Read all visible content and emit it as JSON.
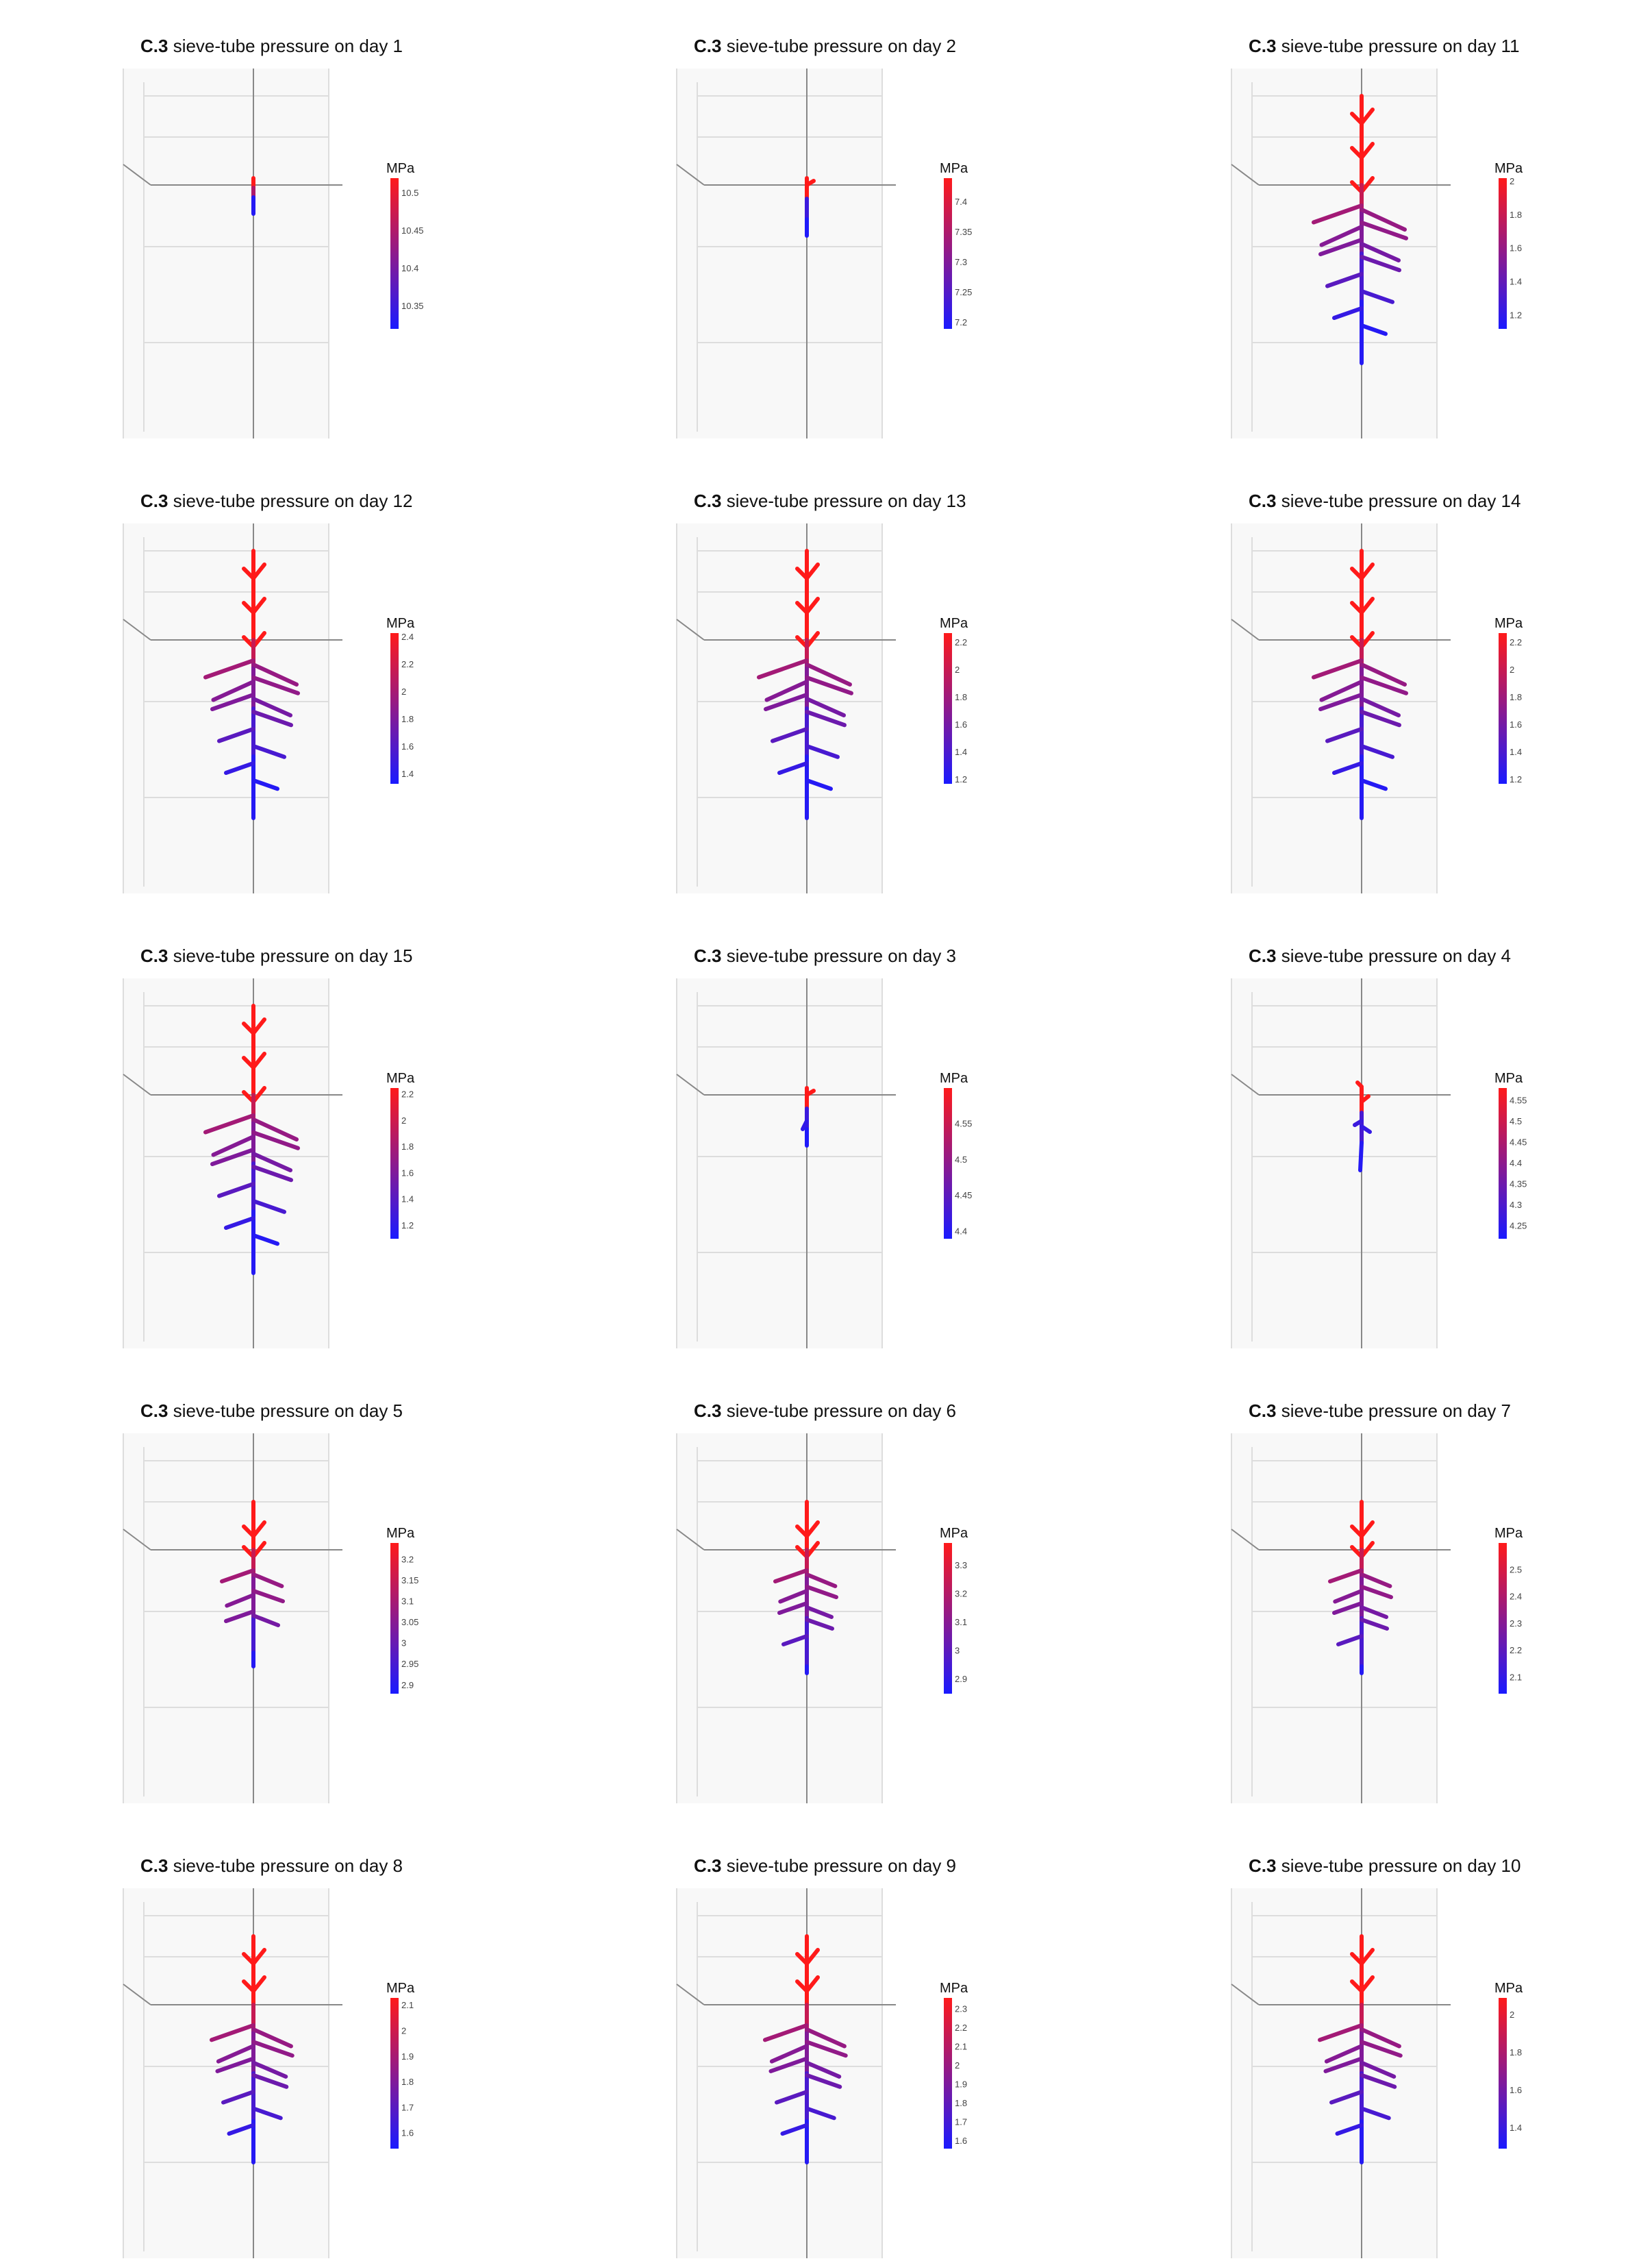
{
  "colors": {
    "low": "#1a1aff",
    "high": "#ff1a1a",
    "grid": "#dddddd",
    "pane": "#f8f8f8",
    "axis": "#888888"
  },
  "chart_data": [
    {
      "type": "3d-line",
      "title_bold": "C.3",
      "title": "sieve-tube pressure on day 1",
      "colorbar_title": "MPa",
      "growth_stage": 1,
      "cmin": 10.32,
      "cmax": 10.52,
      "ticks": [
        "10.5",
        "10.45",
        "10.4",
        "10.35"
      ],
      "tick_values": [
        10.5,
        10.45,
        10.4,
        10.35
      ]
    },
    {
      "type": "3d-line",
      "title_bold": "C.3",
      "title": "sieve-tube pressure on day 2",
      "colorbar_title": "MPa",
      "growth_stage": 2,
      "cmin": 7.19,
      "cmax": 7.44,
      "ticks": [
        "7.4",
        "7.35",
        "7.3",
        "7.25",
        "7.2"
      ],
      "tick_values": [
        7.4,
        7.35,
        7.3,
        7.25,
        7.2
      ]
    },
    {
      "type": "3d-line",
      "title_bold": "C.3",
      "title": "sieve-tube pressure on day 11",
      "colorbar_title": "MPa",
      "growth_stage": 11,
      "cmin": 1.12,
      "cmax": 2.02,
      "ticks": [
        "2",
        "1.8",
        "1.6",
        "1.4",
        "1.2"
      ],
      "tick_values": [
        2,
        1.8,
        1.6,
        1.4,
        1.2
      ]
    },
    {
      "type": "3d-line",
      "title_bold": "C.3",
      "title": "sieve-tube pressure on day 12",
      "colorbar_title": "MPa",
      "growth_stage": 12,
      "cmin": 1.33,
      "cmax": 2.43,
      "ticks": [
        "2.4",
        "2.2",
        "2",
        "1.8",
        "1.6",
        "1.4"
      ],
      "tick_values": [
        2.4,
        2.2,
        2,
        1.8,
        1.6,
        1.4
      ]
    },
    {
      "type": "3d-line",
      "title_bold": "C.3",
      "title": "sieve-tube pressure on day 13",
      "colorbar_title": "MPa",
      "growth_stage": 13,
      "cmin": 1.17,
      "cmax": 2.27,
      "ticks": [
        "2.2",
        "2",
        "1.8",
        "1.6",
        "1.4",
        "1.2"
      ],
      "tick_values": [
        2.2,
        2,
        1.8,
        1.6,
        1.4,
        1.2
      ]
    },
    {
      "type": "3d-line",
      "title_bold": "C.3",
      "title": "sieve-tube pressure on day 14",
      "colorbar_title": "MPa",
      "growth_stage": 14,
      "cmin": 1.17,
      "cmax": 2.27,
      "ticks": [
        "2.2",
        "2",
        "1.8",
        "1.6",
        "1.4",
        "1.2"
      ],
      "tick_values": [
        2.2,
        2,
        1.8,
        1.6,
        1.4,
        1.2
      ]
    },
    {
      "type": "3d-line",
      "title_bold": "C.3",
      "title": "sieve-tube pressure on day 15",
      "colorbar_title": "MPa",
      "growth_stage": 15,
      "cmin": 1.1,
      "cmax": 2.25,
      "ticks": [
        "2.2",
        "2",
        "1.8",
        "1.6",
        "1.4",
        "1.2"
      ],
      "tick_values": [
        2.2,
        2,
        1.8,
        1.6,
        1.4,
        1.2
      ]
    },
    {
      "type": "3d-line",
      "title_bold": "C.3",
      "title": "sieve-tube pressure on day 3",
      "colorbar_title": "MPa",
      "growth_stage": 3,
      "cmin": 4.39,
      "cmax": 4.6,
      "ticks": [
        "4.55",
        "4.5",
        "4.45",
        "4.4"
      ],
      "tick_values": [
        4.55,
        4.5,
        4.45,
        4.4
      ]
    },
    {
      "type": "3d-line",
      "title_bold": "C.3",
      "title": "sieve-tube pressure on day 4",
      "colorbar_title": "MPa",
      "growth_stage": 4,
      "cmin": 4.22,
      "cmax": 4.58,
      "ticks": [
        "4.55",
        "4.5",
        "4.45",
        "4.4",
        "4.35",
        "4.3",
        "4.25"
      ],
      "tick_values": [
        4.55,
        4.5,
        4.45,
        4.4,
        4.35,
        4.3,
        4.25
      ]
    },
    {
      "type": "3d-line",
      "title_bold": "C.3",
      "title": "sieve-tube pressure on day 5",
      "colorbar_title": "MPa",
      "growth_stage": 5,
      "cmin": 2.88,
      "cmax": 3.24,
      "ticks": [
        "3.2",
        "3.15",
        "3.1",
        "3.05",
        "3",
        "2.95",
        "2.9"
      ],
      "tick_values": [
        3.2,
        3.15,
        3.1,
        3.05,
        3,
        2.95,
        2.9
      ]
    },
    {
      "type": "3d-line",
      "title_bold": "C.3",
      "title": "sieve-tube pressure on day 6",
      "colorbar_title": "MPa",
      "growth_stage": 6,
      "cmin": 2.85,
      "cmax": 3.38,
      "ticks": [
        "3.3",
        "3.2",
        "3.1",
        "3",
        "2.9"
      ],
      "tick_values": [
        3.3,
        3.2,
        3.1,
        3,
        2.9
      ]
    },
    {
      "type": "3d-line",
      "title_bold": "C.3",
      "title": "sieve-tube pressure on day 7",
      "colorbar_title": "MPa",
      "growth_stage": 7,
      "cmin": 2.04,
      "cmax": 2.6,
      "ticks": [
        "2.5",
        "2.4",
        "2.3",
        "2.2",
        "2.1"
      ],
      "tick_values": [
        2.5,
        2.4,
        2.3,
        2.2,
        2.1
      ]
    },
    {
      "type": "3d-line",
      "title_bold": "C.3",
      "title": "sieve-tube pressure on day 8",
      "colorbar_title": "MPa",
      "growth_stage": 8,
      "cmin": 1.54,
      "cmax": 2.13,
      "ticks": [
        "2.1",
        "2",
        "1.9",
        "1.8",
        "1.7",
        "1.6"
      ],
      "tick_values": [
        2.1,
        2,
        1.9,
        1.8,
        1.7,
        1.6
      ]
    },
    {
      "type": "3d-line",
      "title_bold": "C.3",
      "title": "sieve-tube pressure on day 9",
      "colorbar_title": "MPa",
      "growth_stage": 9,
      "cmin": 1.56,
      "cmax": 2.36,
      "ticks": [
        "2.3",
        "2.2",
        "2.1",
        "2",
        "1.9",
        "1.8",
        "1.7",
        "1.6"
      ],
      "tick_values": [
        2.3,
        2.2,
        2.1,
        2,
        1.9,
        1.8,
        1.7,
        1.6
      ]
    },
    {
      "type": "3d-line",
      "title_bold": "C.3",
      "title": "sieve-tube pressure on day 10",
      "colorbar_title": "MPa",
      "growth_stage": 10,
      "cmin": 1.29,
      "cmax": 2.09,
      "ticks": [
        "2",
        "1.8",
        "1.6",
        "1.4"
      ],
      "tick_values": [
        2,
        1.8,
        1.6,
        1.4
      ]
    }
  ]
}
